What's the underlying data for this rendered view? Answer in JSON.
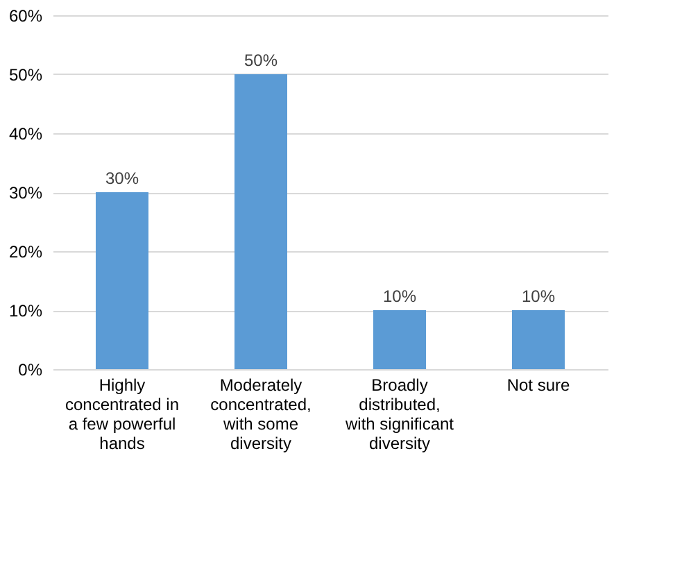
{
  "chart_data": {
    "type": "bar",
    "categories": [
      "Highly concentrated in a few powerful hands",
      "Moderately concentrated, with some diversity",
      "Broadly distributed, with significant diversity",
      "Not sure"
    ],
    "values": [
      30,
      50,
      10,
      10
    ],
    "color": "#5b9bd5",
    "value_labels": [
      "30%",
      "50%",
      "10%",
      "10%"
    ],
    "ylim": [
      0,
      60
    ],
    "yticks": [
      {
        "value": 0,
        "label": "0%"
      },
      {
        "value": 10,
        "label": "10%"
      },
      {
        "value": 20,
        "label": "20%"
      },
      {
        "value": 30,
        "label": "30%"
      },
      {
        "value": 40,
        "label": "40%"
      },
      {
        "value": 50,
        "label": "50%"
      },
      {
        "value": 60,
        "label": "60%"
      }
    ],
    "grid": "y"
  }
}
